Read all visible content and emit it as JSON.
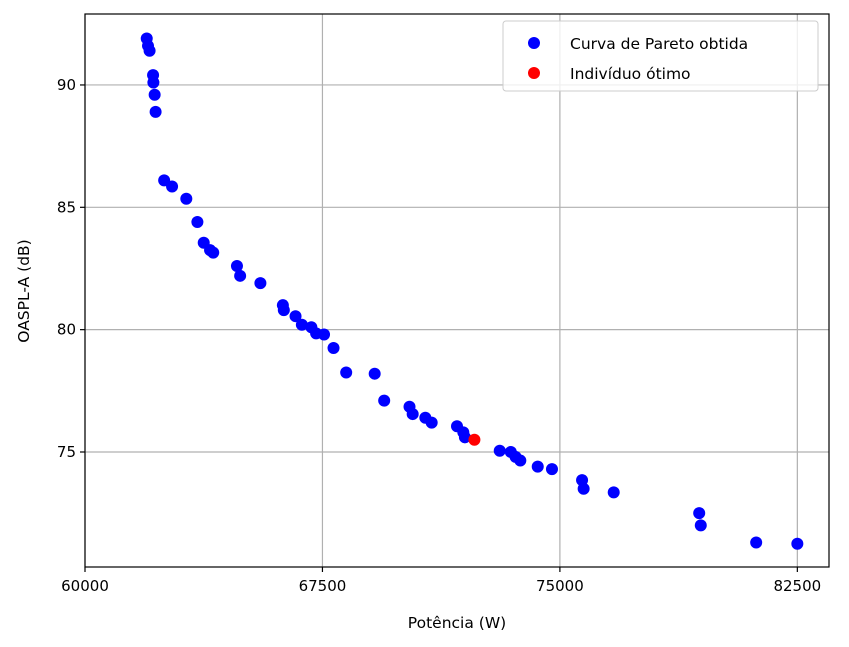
{
  "chart_data": {
    "type": "scatter",
    "xlabel": "Potência (W)",
    "ylabel": "OASPL-A (dB)",
    "xlim": [
      60000,
      83500
    ],
    "ylim": [
      70.3,
      92.9
    ],
    "xticks": [
      60000,
      67500,
      75000,
      82500
    ],
    "yticks": [
      75,
      80,
      85,
      90
    ],
    "grid": true,
    "legend_position": "top-right",
    "series": [
      {
        "name": "Curva de Pareto obtida",
        "color": "#0000ff",
        "points": [
          [
            61950,
            91.9
          ],
          [
            61990,
            91.6
          ],
          [
            62040,
            91.4
          ],
          [
            62150,
            90.4
          ],
          [
            62160,
            90.1
          ],
          [
            62200,
            89.6
          ],
          [
            62230,
            88.9
          ],
          [
            62500,
            86.1
          ],
          [
            62750,
            85.85
          ],
          [
            63200,
            85.35
          ],
          [
            63550,
            84.4
          ],
          [
            63750,
            83.55
          ],
          [
            63950,
            83.25
          ],
          [
            64050,
            83.15
          ],
          [
            64800,
            82.6
          ],
          [
            64900,
            82.2
          ],
          [
            65540,
            81.9
          ],
          [
            66250,
            81.0
          ],
          [
            66280,
            80.8
          ],
          [
            66650,
            80.55
          ],
          [
            66850,
            80.2
          ],
          [
            67150,
            80.1
          ],
          [
            67300,
            79.85
          ],
          [
            67550,
            79.8
          ],
          [
            67850,
            79.25
          ],
          [
            68250,
            78.25
          ],
          [
            69150,
            78.2
          ],
          [
            69450,
            77.1
          ],
          [
            70250,
            76.85
          ],
          [
            70350,
            76.55
          ],
          [
            70750,
            76.4
          ],
          [
            70950,
            76.2
          ],
          [
            71750,
            76.05
          ],
          [
            71950,
            75.8
          ],
          [
            72000,
            75.6
          ],
          [
            73100,
            75.05
          ],
          [
            73450,
            75.0
          ],
          [
            73600,
            74.8
          ],
          [
            73750,
            74.65
          ],
          [
            74300,
            74.4
          ],
          [
            74750,
            74.3
          ],
          [
            75700,
            73.85
          ],
          [
            75750,
            73.5
          ],
          [
            76700,
            73.35
          ],
          [
            79400,
            72.5
          ],
          [
            79450,
            72.0
          ],
          [
            81200,
            71.3
          ],
          [
            82500,
            71.25
          ]
        ]
      },
      {
        "name": "Indivíduo ótimo",
        "color": "#ff0000",
        "points": [
          [
            72300,
            75.5
          ]
        ]
      }
    ]
  }
}
